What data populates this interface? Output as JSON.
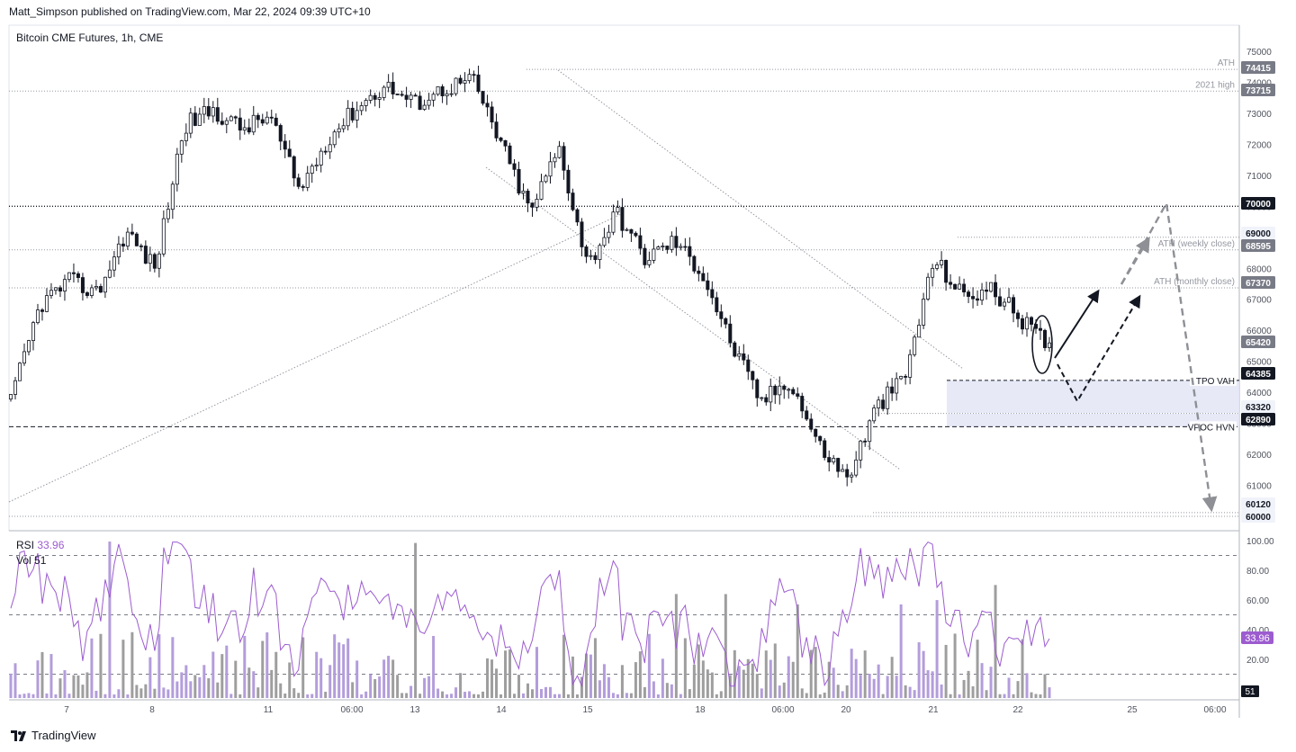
{
  "header": {
    "published": "Matt_Simpson published on TradingView.com, Mar 22, 2024 09:39 UTC+10"
  },
  "footer": {
    "brand": "TradingView",
    "logo_icon": "tradingview-logo-icon"
  },
  "chart_data": [
    {
      "type": "candlestick",
      "title": "Bitcoin CME Futures, 1h, CME",
      "ylim": [
        59500,
        75600
      ],
      "y_ticks": [
        60000,
        61000,
        62000,
        63000,
        64000,
        65000,
        66000,
        67000,
        68000,
        69000,
        70000,
        71000,
        72000,
        73000,
        74000,
        75000
      ],
      "x_ticks": [
        "7",
        "8",
        "11",
        "06:00",
        "13",
        "14",
        "15",
        "18",
        "06:00",
        "20",
        "21",
        "22",
        "25",
        "06:00"
      ],
      "price_path": [
        [
          "7",
          63700
        ],
        [
          "7",
          66800
        ],
        [
          "8",
          67600
        ],
        [
          "8",
          67200
        ],
        [
          "11",
          69200
        ],
        [
          "11",
          68000
        ],
        [
          "11",
          72600
        ],
        [
          "06:00",
          73100
        ],
        [
          "06:00",
          72500
        ],
        [
          "13",
          72900
        ],
        [
          "13",
          70500
        ],
        [
          "13",
          72200
        ],
        [
          "13",
          73200
        ],
        [
          "14",
          73900
        ],
        [
          "14",
          73300
        ],
        [
          "14",
          73800
        ],
        [
          "15",
          74100
        ],
        [
          "15",
          72000
        ],
        [
          "15",
          69800
        ],
        [
          "15",
          71900
        ],
        [
          "15",
          68100
        ],
        [
          "18",
          69800
        ],
        [
          "18",
          68300
        ],
        [
          "18",
          68900
        ],
        [
          "06:00",
          67800
        ],
        [
          "06:00",
          65500
        ],
        [
          "20",
          63700
        ],
        [
          "20",
          64400
        ],
        [
          "20",
          62300
        ],
        [
          "20",
          61200
        ],
        [
          "21",
          63500
        ],
        [
          "21",
          64500
        ],
        [
          "21",
          68300
        ],
        [
          "21",
          67100
        ],
        [
          "22",
          67300
        ],
        [
          "22",
          66400
        ],
        [
          "22",
          65420
        ]
      ],
      "levels": [
        {
          "label": "ATH",
          "value": 74415
        },
        {
          "label": "2021 high",
          "value": 73715
        },
        {
          "label": "",
          "value": 70000
        },
        {
          "label": "",
          "value": 69000
        },
        {
          "label": "ATH (weekly close)",
          "value": 68595
        },
        {
          "label": "ATH (monthly close)",
          "value": 67370
        },
        {
          "label": "TPO VAH",
          "value": 64385
        },
        {
          "label": "",
          "value": 63320
        },
        {
          "label": "VPOC HVN",
          "value": 62890
        },
        {
          "label": "",
          "value": 60120
        },
        {
          "label": "",
          "value": 60000
        }
      ],
      "price_labels": [
        {
          "text": "74415",
          "style": "grey"
        },
        {
          "text": "73715",
          "style": "grey"
        },
        {
          "text": "70000",
          "style": "dark"
        },
        {
          "text": "69000",
          "style": "light"
        },
        {
          "text": "68595",
          "style": "grey"
        },
        {
          "text": "67370",
          "style": "grey"
        },
        {
          "text": "65420",
          "style": "grey"
        },
        {
          "text": "64385",
          "style": "dark"
        },
        {
          "text": "63320",
          "style": "light"
        },
        {
          "text": "62890",
          "style": "dark"
        },
        {
          "text": "60120",
          "style": "light"
        },
        {
          "text": "60000",
          "style": "light"
        }
      ],
      "value_area": {
        "from": 62890,
        "to": 64385,
        "color": "#e4e7f6"
      },
      "colors": {
        "candle": "#131722",
        "grid_line": "#9598a1",
        "text": "#131722",
        "axis_text": "#50535e"
      }
    },
    {
      "type": "line",
      "title": "RSI",
      "value": "33.96",
      "ylim": [
        0,
        100
      ],
      "y_ticks": [
        "100.00",
        "80.00",
        "60.00",
        "40.00",
        "20.00",
        "0"
      ],
      "levels": [
        90,
        50,
        10
      ],
      "series_color": "#9c5ccf",
      "last_label": "33.96",
      "volume": {
        "title": "Vol",
        "value": "51",
        "last_label": "51",
        "colors": [
          "#b39ddb",
          "#9e9e9e"
        ]
      }
    }
  ]
}
